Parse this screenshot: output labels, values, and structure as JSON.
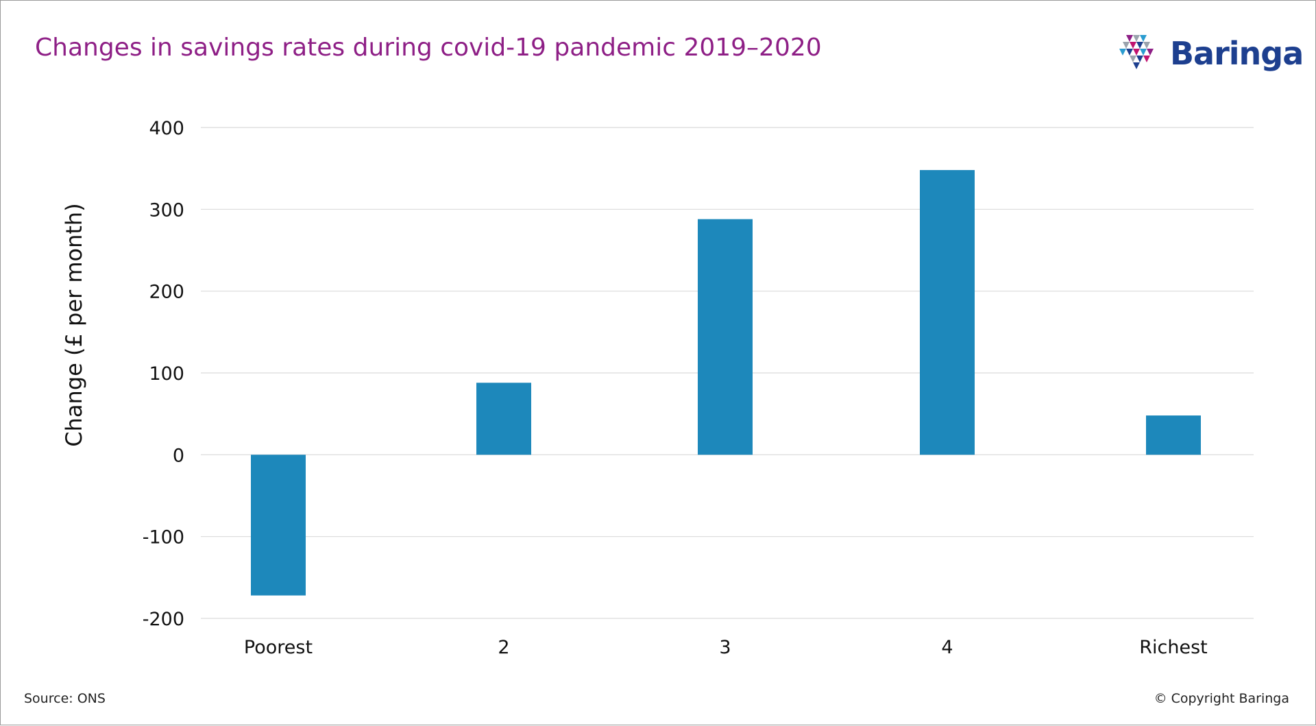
{
  "title": "Changes in savings rates during covid-19 pandemic 2019–2020",
  "logo": {
    "text": "Baringa",
    "icon": "triangle-mosaic-icon",
    "colors": [
      "#1d3f8f",
      "#c0136f",
      "#2a9cd0",
      "#9aa3ad",
      "#8e1f86"
    ]
  },
  "footer": {
    "source": "Source: ONS",
    "copyright": "© Copyright Baringa"
  },
  "colors": {
    "title": "#8e1f86",
    "bar": "#1d88bb",
    "gridline": "#d9d9d9",
    "text": "#111111"
  },
  "chart_data": {
    "type": "bar",
    "title": "Changes in savings rates during covid-19 pandemic 2019–2020",
    "xlabel": "",
    "ylabel": "Change (£ per month)",
    "categories": [
      "Poorest",
      "2",
      "3",
      "4",
      "Richest"
    ],
    "values": [
      -172,
      88,
      288,
      348,
      48
    ],
    "ylim": [
      -200,
      400
    ],
    "yticks": [
      400,
      300,
      200,
      100,
      0,
      -100,
      -200
    ],
    "ytick_labels": [
      "400",
      "300",
      "200",
      "100",
      "0",
      "-100",
      "-200"
    ],
    "grid": true,
    "legend": "none"
  }
}
